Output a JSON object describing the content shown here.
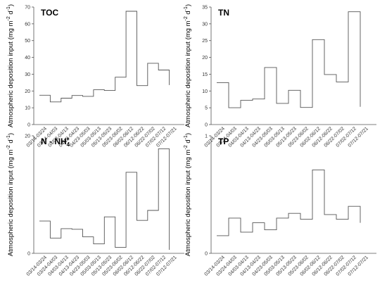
{
  "chart_data": [
    {
      "type": "line",
      "title": "TOC",
      "ylabel_main": "Atmospheric deposition input (mg m",
      "ylabel_sup1": "-2",
      "ylabel_mid": " d",
      "ylabel_sup2": "-1",
      "ylabel_end": ")",
      "ylim": [
        0,
        70
      ],
      "yticks": [
        "0",
        "10",
        "20",
        "30",
        "40",
        "50",
        "60",
        "70"
      ],
      "categories": [
        "03/14-03/24",
        "03/24-04/03",
        "04/03-04/13",
        "04/13-04/23",
        "04/23-05/03",
        "05/03-05/13",
        "05/13-05/23",
        "05/23-06/02",
        "06/02-06/12",
        "06/12-06/22",
        "06/22-07/02",
        "07/02-07/12",
        "07/12-07/21"
      ],
      "values": [
        17.5,
        13.5,
        15.7,
        17.3,
        16.8,
        20.7,
        20.3,
        28.2,
        67.5,
        23.2,
        36.5,
        32.5,
        23.5
      ]
    },
    {
      "type": "line",
      "title": "TN",
      "ylabel_main": "Atmospheric deposition input (mg m",
      "ylabel_sup1": "-2",
      "ylabel_mid": " d",
      "ylabel_sup2": "-1",
      "ylabel_end": ")",
      "ylim": [
        0,
        35
      ],
      "yticks": [
        "0",
        "5",
        "10",
        "15",
        "20",
        "25",
        "30",
        "35"
      ],
      "categories": [
        "03/14-03/24",
        "03/24-04/03",
        "04/03-04/13",
        "04/13-04/23",
        "04/23-05/03",
        "05/03-05/13",
        "05/13-05/23",
        "05/23-06/02",
        "06/02-06/12",
        "06/12-06/22",
        "06/22-07/02",
        "07/02-07/12",
        "07/12-07/21"
      ],
      "values": [
        12.5,
        5.0,
        7.2,
        7.6,
        17.0,
        6.3,
        10.2,
        5.1,
        25.3,
        14.9,
        12.7,
        33.6,
        5.3
      ]
    },
    {
      "type": "line",
      "title_main": "N - NH",
      "title_sub": "4",
      "title_sup": "+",
      "ylabel_main": "Atmospheric deposition input (mg m",
      "ylabel_sup1": "-2",
      "ylabel_mid": " d",
      "ylabel_sup2": "-1",
      "ylabel_end": ")",
      "ylim": [
        0,
        20
      ],
      "yticks": [
        "0",
        "20"
      ],
      "categories": [
        "03/14-03/24",
        "03/24-04/03",
        "04/03-04/13",
        "04/13-04/23",
        "04/23-05/03",
        "05/03-05/13",
        "05/13-05/23",
        "05/23-06/02",
        "06/02-06/12",
        "06/12-06/22",
        "06/22-07/02",
        "07/02-07/12",
        "07/12-07/21"
      ],
      "values": [
        5.5,
        2.6,
        4.2,
        4.1,
        2.8,
        1.6,
        6.2,
        1.0,
        13.8,
        5.6,
        7.3,
        17.8,
        0.6
      ]
    },
    {
      "type": "line",
      "title": "TP",
      "ylabel_main": "Atmospheric deposition input (mg m",
      "ylabel_sup1": "-2",
      "ylabel_mid": " d",
      "ylabel_sup2": "-1",
      "ylabel_end": ")",
      "ylim": [
        0,
        1
      ],
      "yticks": [
        "0",
        "1"
      ],
      "categories": [
        "03/14-03/24",
        "03/24-04/03",
        "04/03-04/13",
        "04/13-04/23",
        "04/23-05/03",
        "05/03-05/13",
        "05/13-05/23",
        "05/23-06/02",
        "06/02-06/12",
        "06/12-06/22",
        "06/22-07/02",
        "07/02-07/12",
        "07/12-07/21"
      ],
      "values": [
        0.15,
        0.3,
        0.18,
        0.26,
        0.2,
        0.3,
        0.34,
        0.29,
        0.71,
        0.33,
        0.29,
        0.4,
        0.26
      ]
    }
  ]
}
